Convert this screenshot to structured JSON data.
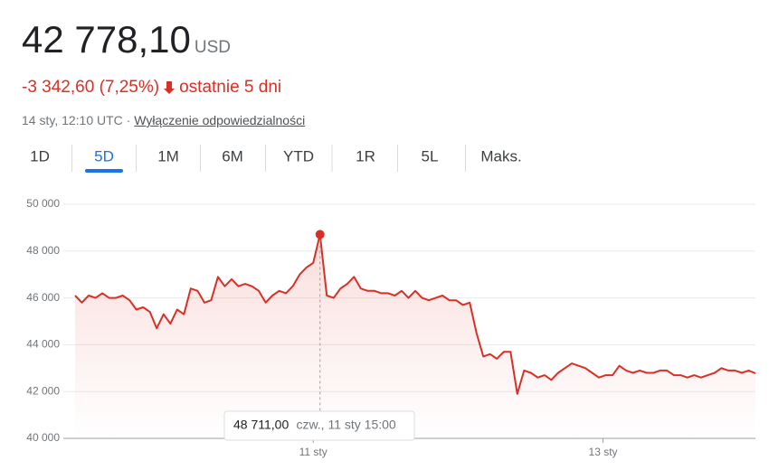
{
  "header": {
    "price": "42 778,10",
    "currency": "USD",
    "change": "-3 342,60 (7,25%)",
    "period": "ostatnie 5 dni",
    "timestamp": "14 sty, 12:10 UTC ·",
    "disclaimer": "Wyłączenie odpowiedzialności"
  },
  "tabs": {
    "items": [
      "1D",
      "5D",
      "1M",
      "6M",
      "YTD",
      "1R",
      "5L",
      "Maks."
    ],
    "selected": 1
  },
  "chart_data": {
    "type": "line",
    "color": "#d93025",
    "grid": true,
    "values": [
      46100,
      45800,
      46100,
      46000,
      46200,
      46000,
      46000,
      46100,
      45900,
      45500,
      45600,
      45400,
      44700,
      45300,
      44900,
      45500,
      45300,
      46400,
      46300,
      45800,
      45900,
      46900,
      46500,
      46800,
      46500,
      46600,
      46500,
      46300,
      45800,
      46100,
      46300,
      46200,
      46500,
      47000,
      47300,
      47500,
      48711,
      46100,
      46000,
      46400,
      46600,
      46900,
      46400,
      46300,
      46300,
      46200,
      46200,
      46100,
      46300,
      46000,
      46300,
      46000,
      45900,
      46000,
      46100,
      45900,
      45900,
      45700,
      45800,
      44500,
      43500,
      43600,
      43400,
      43700,
      43700,
      41900,
      42900,
      42800,
      42600,
      42700,
      42500,
      42800,
      43000,
      43200,
      43100,
      43000,
      42800,
      42600,
      42700,
      42700,
      43100,
      42900,
      42800,
      42900,
      42800,
      42800,
      42900,
      42900,
      42700,
      42700,
      42600,
      42700,
      42600,
      42700,
      42800,
      43000,
      42900,
      42900,
      42800,
      42900,
      42778.1
    ],
    "xlim": [
      0,
      100
    ],
    "xticks": [
      {
        "value": 35,
        "label": "11 sty"
      },
      {
        "value": 77.6,
        "label": "13 sty"
      }
    ],
    "ylim": [
      40000,
      50000
    ],
    "yticks": [
      {
        "value": 40000,
        "label": "40 000"
      },
      {
        "value": 42000,
        "label": "42 000"
      },
      {
        "value": 44000,
        "label": "44 000"
      },
      {
        "value": 46000,
        "label": "46 000"
      },
      {
        "value": 48000,
        "label": "48 000"
      },
      {
        "value": 50000,
        "label": "50 000"
      }
    ],
    "highlight": 36,
    "tooltip": {
      "value_label": "48 711,00",
      "time": "czw., 11 sty 15:00"
    }
  }
}
